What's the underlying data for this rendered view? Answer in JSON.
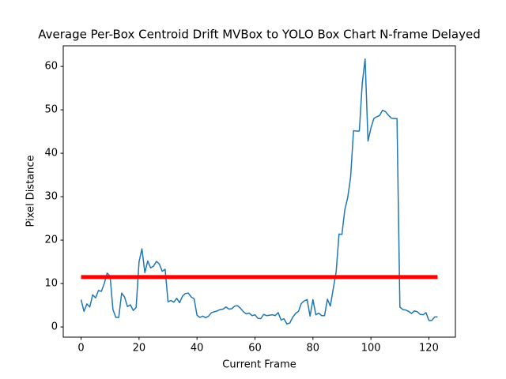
{
  "chart_data": {
    "type": "line",
    "title": "Average Per-Box Centroid Drift MVBox to YOLO Box Chart N-frame Delayed",
    "x_label": "Current Frame",
    "y_label": "Pixel Distance",
    "series": [
      {
        "color": "#1f77b4",
        "x": [
          0,
          1,
          2,
          3,
          4,
          5,
          6,
          7,
          8,
          9,
          10,
          11,
          12,
          13,
          14,
          15,
          16,
          17,
          18,
          19,
          20,
          21,
          22,
          23,
          24,
          25,
          26,
          27,
          28,
          29,
          30,
          31,
          32,
          33,
          34,
          35,
          36,
          37,
          38,
          39,
          40,
          41,
          42,
          43,
          44,
          45,
          46,
          47,
          48,
          49,
          50,
          51,
          52,
          53,
          54,
          55,
          56,
          57,
          58,
          59,
          60,
          61,
          62,
          63,
          64,
          65,
          66,
          67,
          68,
          69,
          70,
          71,
          72,
          73,
          74,
          75,
          76,
          77,
          78,
          79,
          80,
          81,
          82,
          83,
          84,
          85,
          86,
          87,
          88,
          89,
          90,
          91,
          92,
          93,
          94,
          95,
          96,
          97,
          98,
          99,
          100,
          101,
          102,
          103,
          104,
          105,
          106,
          107,
          108,
          109,
          110,
          111,
          112,
          113,
          114,
          115,
          116,
          117,
          118,
          119,
          120,
          121,
          122,
          123
        ],
        "values": [
          6.3,
          3.6,
          5.3,
          4.6,
          7.4,
          6.7,
          8.4,
          8.2,
          10,
          12.4,
          11.7,
          4,
          2.2,
          2.2,
          7.8,
          6.9,
          4.7,
          5.1,
          3.8,
          4.5,
          15,
          18,
          12.5,
          15.2,
          13.6,
          14,
          15.1,
          14.5,
          12.8,
          13.3,
          5.8,
          6.1,
          5.7,
          6.6,
          5.6,
          7.1,
          7.7,
          7.8,
          6.9,
          6.5,
          2.7,
          2.2,
          2.5,
          2.1,
          2.5,
          3.3,
          3.5,
          3.7,
          4,
          4.1,
          4.6,
          4.1,
          4.2,
          4.8,
          4.9,
          4.3,
          3.5,
          3,
          3.2,
          2.6,
          2.8,
          2,
          1.9,
          2.9,
          2.6,
          2.7,
          2.8,
          2.6,
          3.3,
          1.6,
          1.9,
          0.7,
          0.9,
          2.2,
          3.1,
          3.6,
          5.4,
          6,
          6.3,
          2.5,
          6.3,
          2.8,
          3.2,
          2.6,
          2.6,
          6.4,
          4.8,
          8.8,
          12.6,
          21.4,
          21.3,
          27,
          29.8,
          34.5,
          45.2,
          45.1,
          45.1,
          56,
          61.7,
          42.8,
          45.8,
          48,
          48.4,
          48.7,
          49.9,
          49.6,
          48.8,
          48.1,
          48,
          48,
          4.6,
          4,
          3.9,
          3.6,
          3.1,
          3.7,
          3.5,
          2.9,
          2.8,
          3.3,
          1.5,
          1.5,
          2.3,
          2.3
        ],
        "linewidth": 1.5
      },
      {
        "color": "#ff0000",
        "x": [
          0,
          123
        ],
        "values": [
          11.5,
          11.5
        ],
        "linewidth": 5
      }
    ],
    "xlim": [
      -6.15,
      129.15
    ],
    "xticks": [
      0,
      20,
      40,
      60,
      80,
      100,
      120
    ],
    "ylim": [
      -2.35,
      64.75
    ],
    "yticks": [
      0,
      10,
      20,
      30,
      40,
      50,
      60
    ],
    "grid": false
  }
}
